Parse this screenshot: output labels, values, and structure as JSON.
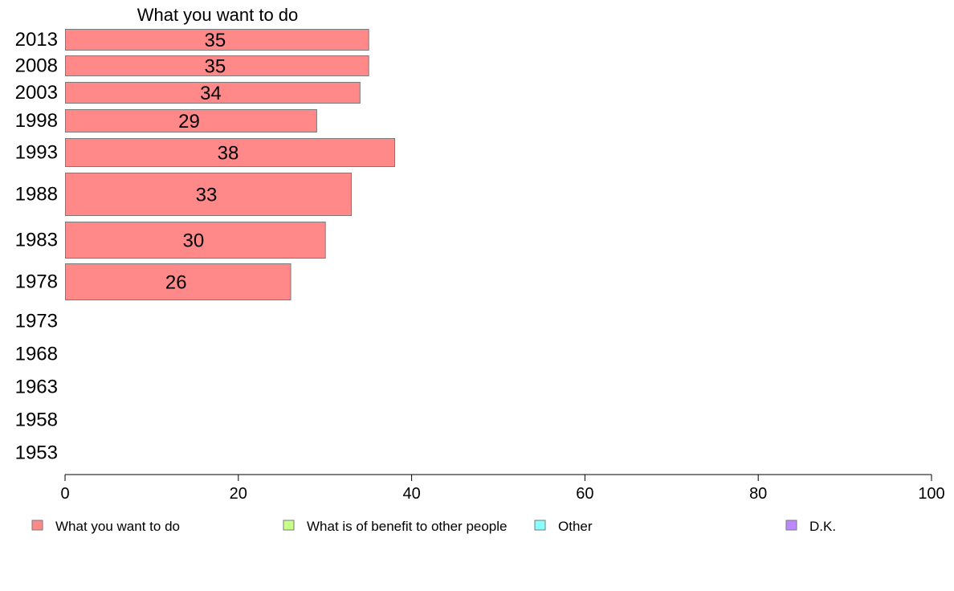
{
  "chart_data": {
    "type": "bar",
    "orientation": "horizontal",
    "title": "What you want to do",
    "categories": [
      "2013",
      "2008",
      "2003",
      "1998",
      "1993",
      "1988",
      "1983",
      "1978",
      "1973",
      "1968",
      "1963",
      "1958",
      "1953"
    ],
    "series": [
      {
        "name": "What you want to do",
        "color": "#ff8888",
        "values": [
          35,
          35,
          34,
          29,
          38,
          33,
          30,
          26,
          null,
          null,
          null,
          null,
          null
        ]
      }
    ],
    "xlim": [
      0,
      100
    ],
    "xticks": [
      "0",
      "20",
      "40",
      "60",
      "80",
      "100"
    ],
    "grid": false,
    "legend": {
      "placement": "bottom",
      "items": [
        {
          "label": "What you want to do",
          "color": "#ff8888"
        },
        {
          "label": "What is of benefit to other people",
          "color": "#c8ff88"
        },
        {
          "label": "Other",
          "color": "#88ffff"
        },
        {
          "label": "D.K.",
          "color": "#bb88ff"
        }
      ]
    }
  }
}
